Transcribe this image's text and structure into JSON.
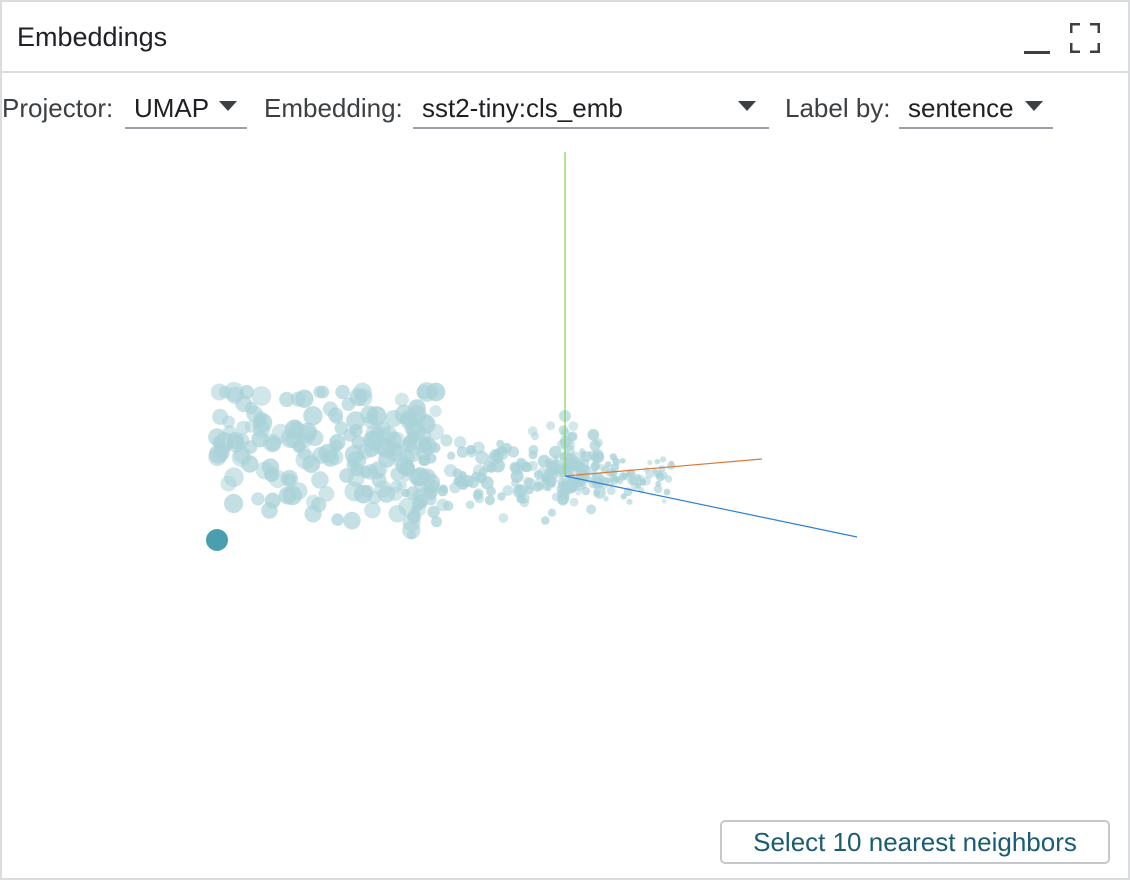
{
  "panel": {
    "title": "Embeddings",
    "minimize_icon": "minimize-icon",
    "maximize_icon": "fullscreen-icon"
  },
  "toolbar": {
    "projector": {
      "label": "Projector:",
      "value": "UMAP"
    },
    "embedding": {
      "label": "Embedding:",
      "value": "sst2-tiny:cls_emb"
    },
    "label_by": {
      "label": "Label by:",
      "value": "sentence"
    }
  },
  "colors": {
    "point": "#a9d2d8",
    "point_selected": "#4a9fae",
    "axis_x": "#d87a3a",
    "axis_y": "#7fd64a",
    "axis_z": "#2f7fd8"
  },
  "actions": {
    "nearest_neighbors": "Select 10 nearest neighbors"
  }
}
